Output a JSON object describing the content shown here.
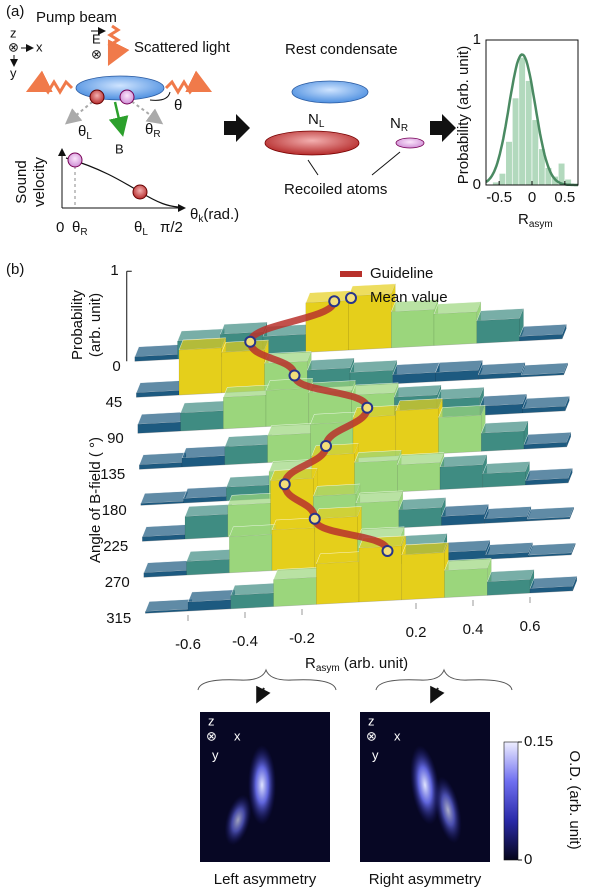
{
  "panel_a": {
    "label": "(a)",
    "pump_beam": "Pump beam",
    "e_field": "E",
    "cross": "⊗",
    "scattered_light": "Scattered light",
    "coords": {
      "z": "z",
      "x": "x",
      "y": "y"
    },
    "theta": "θ",
    "theta_l": {
      "base": "θ",
      "sub": "L"
    },
    "theta_r": {
      "base": "θ",
      "sub": "R"
    },
    "b_field": "B",
    "rest_condensate": "Rest condensate",
    "n_l": {
      "base": "N",
      "sub": "L"
    },
    "n_r": {
      "base": "N",
      "sub": "R"
    },
    "recoiled_atoms": "Recoiled atoms",
    "sound_velocity": {
      "line1": "Sound",
      "line2": "velocity"
    },
    "sv_zero": "0",
    "sv_pi_half": "π/2",
    "sv_xlabel": {
      "base": "θ",
      "sub": "k",
      "rest": "(rad.)"
    }
  },
  "chart_data": [
    {
      "type": "histogram",
      "ylabel": "Probability (arb. unit)",
      "xlabel": {
        "base": "R",
        "sub": "asym"
      },
      "bins": [
        -0.6,
        -0.5,
        -0.4,
        -0.3,
        -0.2,
        -0.1,
        0,
        0.1,
        0.2,
        0.3,
        0.4,
        0.5,
        0.6
      ],
      "values": [
        0.02,
        0.08,
        0.3,
        0.6,
        0.88,
        0.72,
        0.45,
        0.25,
        0.12,
        0.06,
        0.15,
        0.04
      ],
      "color": "#9fd0ad",
      "fit": {
        "mean": -0.15,
        "sigma": 0.2,
        "peak": 0.9,
        "color": "#4a8a62"
      },
      "xlim": [
        -0.7,
        0.7
      ],
      "xticks": [
        -0.5,
        0,
        0.5
      ],
      "ylim": [
        0,
        1
      ],
      "yticks": [
        0,
        1
      ]
    },
    {
      "type": "bar3d",
      "label": "(b)",
      "zlabel": {
        "line1": "Probability",
        "line2": "(arb. unit)"
      },
      "zlim": [
        0,
        1
      ],
      "zticks": [
        1
      ],
      "ylabel": "Angle of B-field ( °)",
      "angle_ticks": [
        0,
        45,
        90,
        135,
        180,
        225,
        270,
        315
      ],
      "xlabel": {
        "base": "R",
        "sub": "asym",
        "rest": " (arb. unit)"
      },
      "xlim": [
        -0.75,
        0.75
      ],
      "xticks": [
        -0.6,
        -0.4,
        -0.2,
        0.2,
        0.4,
        0.6
      ],
      "bins": [
        -0.75,
        -0.6,
        -0.45,
        -0.3,
        -0.15,
        0,
        0.15,
        0.3,
        0.45,
        0.6,
        0.75
      ],
      "values": [
        [
          0.05,
          0.2,
          0.25,
          0.2,
          0.55,
          0.6,
          0.4,
          0.35,
          0.25,
          0.05
        ],
        [
          0.05,
          0.5,
          0.45,
          0.3,
          0.2,
          0.15,
          0.1,
          0.1,
          0.05,
          0.02
        ],
        [
          0.1,
          0.2,
          0.35,
          0.4,
          0.35,
          0.3,
          0.25,
          0.2,
          0.1,
          0.05
        ],
        [
          0.05,
          0.1,
          0.2,
          0.3,
          0.4,
          0.45,
          0.5,
          0.4,
          0.2,
          0.05
        ],
        [
          0.02,
          0.05,
          0.15,
          0.3,
          0.45,
          0.35,
          0.3,
          0.25,
          0.15,
          0.05
        ],
        [
          0.05,
          0.25,
          0.35,
          0.6,
          0.4,
          0.3,
          0.2,
          0.1,
          0.05,
          0.02
        ],
        [
          0.05,
          0.15,
          0.4,
          0.45,
          0.55,
          0.3,
          0.2,
          0.1,
          0.05,
          0.02
        ],
        [
          0.02,
          0.1,
          0.15,
          0.3,
          0.45,
          0.6,
          0.5,
          0.3,
          0.15,
          0.05
        ]
      ],
      "means": [
        -0.05,
        -0.35,
        -0.2,
        0.05,
        -0.1,
        -0.25,
        -0.15,
        0.1
      ],
      "colormap": [
        "#1d5a80",
        "#3f8c82",
        "#9bd67c",
        "#e5cf1b"
      ],
      "legend": [
        {
          "name": "Guideline",
          "color": "#b8312b"
        },
        {
          "name": "Mean value",
          "color": "#f3df7a",
          "edge": "#27348b"
        }
      ]
    }
  ],
  "images": {
    "left": "Left asymmetry",
    "right": "Right asymmetry",
    "colorbar": {
      "label": "O.D. (arb. unit)",
      "clim": [
        0,
        0.15
      ],
      "ticks": [
        0,
        0.15
      ],
      "colors": [
        "#05051a",
        "#2a2aa8",
        "#6f6ff0",
        "#eeeeff"
      ]
    }
  }
}
